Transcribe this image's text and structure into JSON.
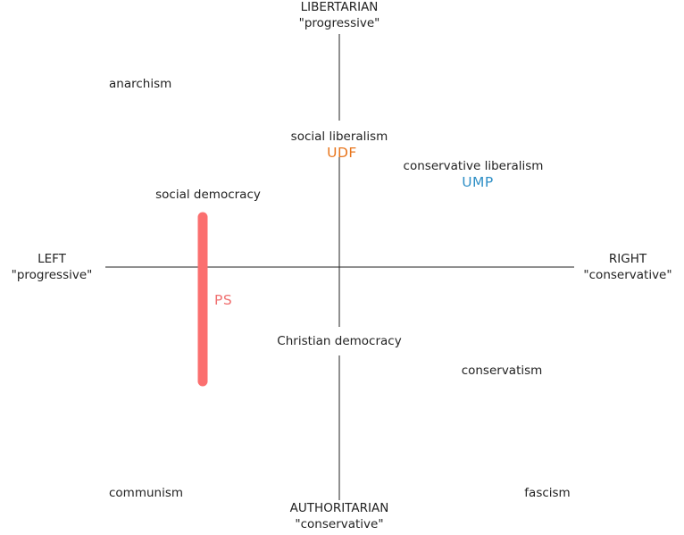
{
  "axes": {
    "top": {
      "line1": "LIBERTARIAN",
      "line2": "\"progressive\""
    },
    "bottom": {
      "line1": "AUTHORITARIAN",
      "line2": "\"conservative\""
    },
    "left": {
      "line1": "LEFT",
      "line2": "\"progressive\""
    },
    "right": {
      "line1": "RIGHT",
      "line2": "\"conservative\""
    }
  },
  "ideologies": {
    "anarchism": "anarchism",
    "social_liberalism": "social liberalism",
    "conservative_liberalism": "conservative liberalism",
    "social_democracy": "social democracy",
    "christian_democracy": "Christian democracy",
    "conservatism": "conservatism",
    "communism": "communism",
    "fascism": "fascism"
  },
  "parties": {
    "udf": {
      "label": "UDF",
      "color": "#e8761e"
    },
    "ump": {
      "label": "UMP",
      "color": "#2f8fc6"
    },
    "ps": {
      "label": "PS",
      "color": "#f07070"
    }
  },
  "colors": {
    "axis_line": "#222222",
    "ps_band": "#fb6f6f"
  }
}
